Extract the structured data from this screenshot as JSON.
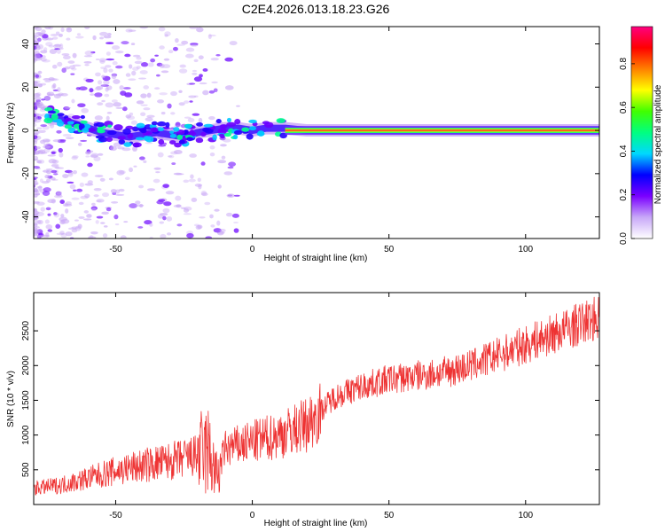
{
  "title": "C2E4.2026.013.18.23.G26",
  "chart_data": [
    {
      "type": "heatmap",
      "xlabel": "Height of straight line (km)",
      "ylabel": "Frequency (Hz)",
      "xlim": [
        -80,
        127
      ],
      "ylim": [
        -50,
        48
      ],
      "xticks": [
        -50,
        0,
        50,
        100
      ],
      "yticks": [
        -40,
        -20,
        0,
        20,
        40
      ],
      "colorbar": {
        "label": "Normalized spectral amplitude",
        "range": [
          0,
          0.97
        ],
        "ticks": [
          "0.0",
          "0.2",
          "0.4",
          "0.6",
          "0.8"
        ],
        "tick_values": [
          0,
          0.2,
          0.4,
          0.6,
          0.8
        ],
        "colors": [
          "#ffffff",
          "#c8a8f8",
          "#7a00ff",
          "#0000ff",
          "#00d8ff",
          "#00ff80",
          "#40ff00",
          "#ffff00",
          "#ff8000",
          "#ff0000",
          "#ff0080"
        ]
      },
      "signal_trace": [
        {
          "x": -75,
          "y": 6
        },
        {
          "x": -70,
          "y": 5
        },
        {
          "x": -65,
          "y": 3
        },
        {
          "x": -60,
          "y": 1
        },
        {
          "x": -55,
          "y": -1
        },
        {
          "x": -50,
          "y": -2
        },
        {
          "x": -45,
          "y": -3
        },
        {
          "x": -40,
          "y": -2
        },
        {
          "x": -35,
          "y": -1
        },
        {
          "x": -30,
          "y": -2
        },
        {
          "x": -25,
          "y": -3
        },
        {
          "x": -20,
          "y": -1
        },
        {
          "x": -15,
          "y": 0
        },
        {
          "x": -10,
          "y": 1
        },
        {
          "x": -5,
          "y": 1
        },
        {
          "x": 0,
          "y": 0
        },
        {
          "x": 5,
          "y": 1
        },
        {
          "x": 12,
          "y": 1
        },
        {
          "x": 20,
          "y": 0
        },
        {
          "x": 127,
          "y": 0
        }
      ]
    },
    {
      "type": "line",
      "xlabel": "Height of straight line (km)",
      "ylabel": "SNR (10 * v/v)",
      "xlim": [
        -80,
        127
      ],
      "ylim": [
        0,
        3050
      ],
      "xticks": [
        -50,
        0,
        50,
        100
      ],
      "yticks": [
        500,
        1000,
        1500,
        2000,
        2500
      ],
      "color": "#ee3333",
      "trend": [
        {
          "x": -80,
          "y": 230
        },
        {
          "x": -70,
          "y": 280
        },
        {
          "x": -60,
          "y": 380
        },
        {
          "x": -50,
          "y": 480
        },
        {
          "x": -40,
          "y": 560
        },
        {
          "x": -30,
          "y": 620
        },
        {
          "x": -20,
          "y": 700
        },
        {
          "x": -16,
          "y": 760
        },
        {
          "x": -13,
          "y": 400
        },
        {
          "x": -10,
          "y": 800
        },
        {
          "x": 0,
          "y": 900
        },
        {
          "x": 10,
          "y": 1000
        },
        {
          "x": 20,
          "y": 1150
        },
        {
          "x": 30,
          "y": 1550
        },
        {
          "x": 40,
          "y": 1700
        },
        {
          "x": 50,
          "y": 1800
        },
        {
          "x": 60,
          "y": 1850
        },
        {
          "x": 70,
          "y": 1900
        },
        {
          "x": 80,
          "y": 2000
        },
        {
          "x": 90,
          "y": 2150
        },
        {
          "x": 100,
          "y": 2300
        },
        {
          "x": 110,
          "y": 2450
        },
        {
          "x": 120,
          "y": 2600
        },
        {
          "x": 127,
          "y": 2700
        }
      ]
    }
  ]
}
